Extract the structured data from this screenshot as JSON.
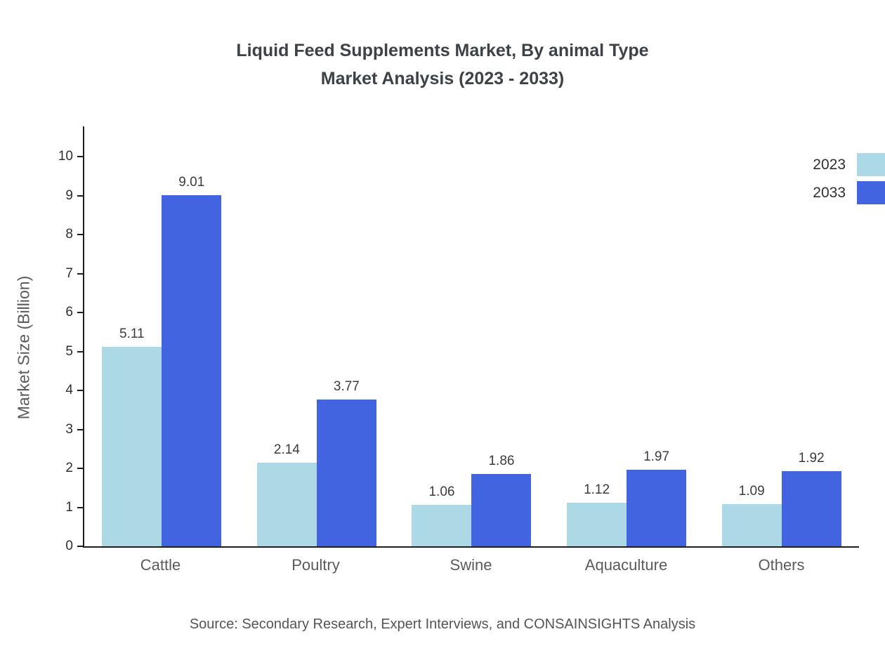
{
  "chart_data": {
    "type": "bar",
    "title": "Liquid Feed Supplements Market, By animal Type Market Analysis (2023 - 2033)",
    "title_lines": [
      "Liquid Feed Supplements Market, By animal Type",
      "Market Analysis (2023 - 2033)"
    ],
    "categories": [
      "Cattle",
      "Poultry",
      "Swine",
      "Aquaculture",
      "Others"
    ],
    "series": [
      {
        "name": "2023",
        "color": "#ADD8E6",
        "values": [
          5.11,
          2.14,
          1.06,
          1.12,
          1.09
        ]
      },
      {
        "name": "2033",
        "color": "#4264E0",
        "values": [
          9.01,
          3.77,
          1.86,
          1.97,
          1.92
        ]
      }
    ],
    "xlabel": "",
    "ylabel": "Market Size (Billion)",
    "ylim": [
      0,
      10
    ],
    "yticks": [
      0,
      1,
      2,
      3,
      4,
      5,
      6,
      7,
      8,
      9,
      10
    ],
    "value_label_format": "2-decimals",
    "grid": false,
    "legend_position": "top-right",
    "source": "Source: Secondary Research, Expert Interviews, and CONSAINSIGHTS Analysis"
  }
}
